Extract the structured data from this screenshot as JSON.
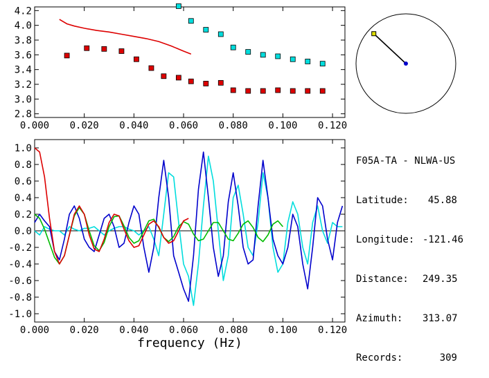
{
  "station": {
    "title": "F05A-TA - NLWA-US",
    "fields": [
      {
        "label": "Latitude:",
        "value": "45.88"
      },
      {
        "label": "Longitude:",
        "value": "-121.46"
      },
      {
        "label": "Distance:",
        "value": "249.35"
      },
      {
        "label": "Azimuth:",
        "value": "313.07"
      },
      {
        "label": "Records:",
        "value": "309"
      }
    ]
  },
  "chart_data": [
    {
      "type": "scatter",
      "xlim": [
        0.0,
        0.125
      ],
      "ylim": [
        2.75,
        4.25
      ],
      "xticks": [
        "0.000",
        "0.020",
        "0.040",
        "0.060",
        "0.080",
        "0.100",
        "0.120"
      ],
      "yticks": [
        "2.8",
        "3.0",
        "3.2",
        "3.4",
        "3.6",
        "3.8",
        "4.0",
        "4.2"
      ],
      "series": [
        {
          "kind": "line",
          "color": "#dd0000",
          "x": [
            0.01,
            0.013,
            0.016,
            0.02,
            0.025,
            0.03,
            0.035,
            0.04,
            0.045,
            0.05,
            0.055,
            0.06,
            0.063
          ],
          "y": [
            4.08,
            4.02,
            3.99,
            3.96,
            3.93,
            3.91,
            3.88,
            3.85,
            3.82,
            3.78,
            3.72,
            3.65,
            3.61
          ]
        },
        {
          "kind": "points",
          "color": "#dd0000",
          "x": [
            0.013,
            0.021,
            0.028,
            0.035,
            0.041,
            0.047,
            0.052,
            0.058,
            0.063,
            0.069,
            0.075,
            0.08,
            0.086,
            0.092,
            0.098,
            0.104,
            0.11,
            0.116
          ],
          "y": [
            3.59,
            3.69,
            3.68,
            3.65,
            3.54,
            3.42,
            3.31,
            3.29,
            3.24,
            3.21,
            3.22,
            3.12,
            3.11,
            3.11,
            3.12,
            3.11,
            3.11,
            3.11
          ]
        },
        {
          "kind": "points",
          "color": "#00dddd",
          "x": [
            0.058,
            0.063,
            0.069,
            0.075,
            0.08,
            0.086,
            0.092,
            0.098,
            0.104,
            0.11,
            0.116
          ],
          "y": [
            4.26,
            4.06,
            3.94,
            3.88,
            3.7,
            3.64,
            3.6,
            3.58,
            3.54,
            3.51,
            3.48
          ]
        }
      ]
    },
    {
      "type": "line",
      "xlim": [
        0.0,
        0.125
      ],
      "ylim": [
        -1.1,
        1.1
      ],
      "xlabel": "frequency (Hz)",
      "xticks": [
        "0.000",
        "0.020",
        "0.040",
        "0.060",
        "0.080",
        "0.100",
        "0.120"
      ],
      "yticks": [
        "-1.0",
        "-0.8",
        "-0.6",
        "-0.4",
        "-0.2",
        "0.0",
        "0.2",
        "0.4",
        "0.6",
        "0.8",
        "1.0"
      ],
      "series": [
        {
          "color": "#dd0000",
          "x": [
            0.0,
            0.002,
            0.004,
            0.006,
            0.008,
            0.01,
            0.012,
            0.014,
            0.016,
            0.018,
            0.02,
            0.022,
            0.024,
            0.026,
            0.028,
            0.03,
            0.032,
            0.034,
            0.036,
            0.038,
            0.04,
            0.042,
            0.044,
            0.046,
            0.048,
            0.05,
            0.052,
            0.054,
            0.056,
            0.058,
            0.06,
            0.062
          ],
          "y": [
            1.0,
            0.95,
            0.65,
            0.15,
            -0.25,
            -0.4,
            -0.3,
            -0.05,
            0.2,
            0.3,
            0.2,
            -0.05,
            -0.22,
            -0.25,
            -0.1,
            0.1,
            0.2,
            0.18,
            0.02,
            -0.12,
            -0.2,
            -0.18,
            -0.05,
            0.08,
            0.12,
            0.05,
            -0.08,
            -0.15,
            -0.12,
            0.0,
            0.12,
            0.15
          ]
        },
        {
          "color": "#00bb00",
          "x": [
            0.0,
            0.002,
            0.004,
            0.006,
            0.008,
            0.01,
            0.012,
            0.014,
            0.016,
            0.018,
            0.02,
            0.022,
            0.024,
            0.026,
            0.028,
            0.03,
            0.032,
            0.034,
            0.036,
            0.038,
            0.04,
            0.042,
            0.044,
            0.046,
            0.048,
            0.05,
            0.052,
            0.054,
            0.056,
            0.058,
            0.06,
            0.062,
            0.064,
            0.066,
            0.068,
            0.07,
            0.072,
            0.074,
            0.076,
            0.078,
            0.08,
            0.082,
            0.084,
            0.086,
            0.088,
            0.09,
            0.092,
            0.094,
            0.096,
            0.098,
            0.1
          ],
          "y": [
            0.2,
            0.15,
            0.02,
            -0.15,
            -0.32,
            -0.4,
            -0.3,
            -0.05,
            0.18,
            0.28,
            0.2,
            0.0,
            -0.18,
            -0.24,
            -0.14,
            0.05,
            0.17,
            0.18,
            0.06,
            -0.08,
            -0.15,
            -0.12,
            0.0,
            0.12,
            0.14,
            0.04,
            -0.08,
            -0.13,
            -0.07,
            0.05,
            0.11,
            0.08,
            -0.04,
            -0.12,
            -0.1,
            0.0,
            0.1,
            0.1,
            0.0,
            -0.1,
            -0.12,
            -0.03,
            0.08,
            0.12,
            0.04,
            -0.08,
            -0.13,
            -0.05,
            0.08,
            0.12,
            0.05
          ]
        },
        {
          "color": "#0000cc",
          "x": [
            0.0,
            0.002,
            0.004,
            0.006,
            0.008,
            0.01,
            0.012,
            0.014,
            0.016,
            0.018,
            0.02,
            0.022,
            0.024,
            0.026,
            0.028,
            0.03,
            0.032,
            0.034,
            0.036,
            0.038,
            0.04,
            0.042,
            0.044,
            0.046,
            0.048,
            0.05,
            0.052,
            0.054,
            0.056,
            0.058,
            0.06,
            0.062,
            0.064,
            0.066,
            0.068,
            0.07,
            0.072,
            0.074,
            0.076,
            0.078,
            0.08,
            0.082,
            0.084,
            0.086,
            0.088,
            0.09,
            0.092,
            0.094,
            0.096,
            0.098,
            0.1,
            0.102,
            0.104,
            0.106,
            0.108,
            0.11,
            0.112,
            0.114,
            0.116,
            0.118,
            0.12,
            0.122,
            0.124
          ],
          "y": [
            0.1,
            0.2,
            0.12,
            0.05,
            -0.25,
            -0.35,
            -0.1,
            0.2,
            0.3,
            0.15,
            -0.1,
            -0.2,
            -0.25,
            -0.05,
            0.15,
            0.2,
            0.05,
            -0.2,
            -0.15,
            0.1,
            0.3,
            0.2,
            -0.2,
            -0.5,
            -0.2,
            0.4,
            0.85,
            0.4,
            -0.3,
            -0.5,
            -0.7,
            -0.85,
            -0.3,
            0.5,
            0.95,
            0.4,
            -0.2,
            -0.55,
            -0.3,
            0.35,
            0.7,
            0.3,
            -0.2,
            -0.4,
            -0.35,
            0.3,
            0.85,
            0.4,
            -0.1,
            -0.3,
            -0.4,
            -0.2,
            0.2,
            0.05,
            -0.4,
            -0.7,
            -0.2,
            0.4,
            0.3,
            -0.1,
            -0.35,
            0.1,
            0.3
          ]
        },
        {
          "color": "#00dddd",
          "x": [
            0.0,
            0.002,
            0.004,
            0.006,
            0.008,
            0.01,
            0.012,
            0.014,
            0.016,
            0.018,
            0.02,
            0.022,
            0.024,
            0.026,
            0.028,
            0.03,
            0.032,
            0.034,
            0.036,
            0.038,
            0.04,
            0.042,
            0.044,
            0.046,
            0.048,
            0.05,
            0.052,
            0.054,
            0.056,
            0.058,
            0.06,
            0.062,
            0.064,
            0.066,
            0.068,
            0.07,
            0.072,
            0.074,
            0.076,
            0.078,
            0.08,
            0.082,
            0.084,
            0.086,
            0.088,
            0.09,
            0.092,
            0.094,
            0.096,
            0.098,
            0.1,
            0.102,
            0.104,
            0.106,
            0.108,
            0.11,
            0.112,
            0.114,
            0.116,
            0.118,
            0.12,
            0.122,
            0.124
          ],
          "y": [
            0.0,
            -0.05,
            0.05,
            0.02,
            0.0,
            0.0,
            -0.05,
            0.05,
            0.02,
            0.0,
            0.03,
            0.03,
            0.05,
            0.0,
            -0.05,
            0.0,
            0.03,
            0.05,
            0.05,
            0.02,
            0.0,
            -0.05,
            0.0,
            0.05,
            -0.1,
            -0.3,
            0.2,
            0.7,
            0.65,
            0.1,
            -0.4,
            -0.55,
            -0.9,
            -0.4,
            0.3,
            0.9,
            0.6,
            0.0,
            -0.6,
            -0.3,
            0.4,
            0.55,
            0.2,
            -0.2,
            -0.3,
            0.1,
            0.7,
            0.4,
            -0.2,
            -0.5,
            -0.4,
            0.1,
            0.35,
            0.2,
            -0.2,
            -0.4,
            0.1,
            0.3,
            0.0,
            -0.15,
            0.1,
            0.05,
            0.05
          ]
        }
      ]
    },
    {
      "type": "polar",
      "azimuth": 313.07,
      "line_color": "#000000",
      "endpoint_color": "#dddd00",
      "center_color": "#0000cc"
    }
  ]
}
